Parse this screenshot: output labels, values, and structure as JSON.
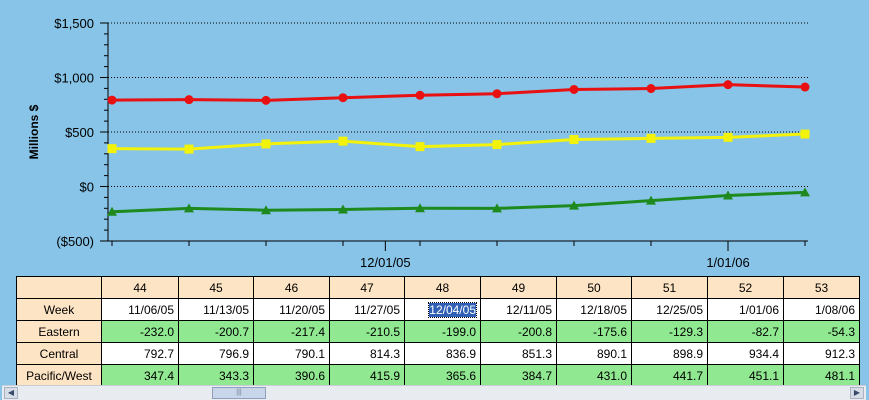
{
  "chart_data": {
    "type": "line",
    "ylabel": "Millions $",
    "ylim": [
      -500,
      1500
    ],
    "yticks": [
      "$1,500",
      "$1,000",
      "$500",
      "$0",
      "($500)"
    ],
    "ytick_values": [
      1500,
      1000,
      500,
      0,
      -500
    ],
    "x_date_labels": [
      {
        "label": "12/01/05",
        "at_week": 47.55
      },
      {
        "label": "1/01/06",
        "at_week": 52
      }
    ],
    "grid": true,
    "legend": "none",
    "weeks": [
      "44",
      "45",
      "46",
      "47",
      "48",
      "49",
      "50",
      "51",
      "52",
      "53"
    ],
    "dates": [
      "11/06/05",
      "11/13/05",
      "11/20/05",
      "11/27/05",
      "12/04/05",
      "12/11/05",
      "12/18/05",
      "12/25/05",
      "1/01/06",
      "1/08/06"
    ],
    "series": [
      {
        "name": "Eastern",
        "color": "#1E8A1E",
        "marker": "triangle",
        "values": [
          -232.0,
          -200.7,
          -217.4,
          -210.5,
          -199.0,
          -200.8,
          -175.6,
          -129.3,
          -82.7,
          -54.3
        ]
      },
      {
        "name": "Central",
        "color": "#E81010",
        "marker": "circle",
        "values": [
          792.7,
          796.9,
          790.1,
          814.3,
          836.9,
          851.3,
          890.1,
          898.9,
          934.4,
          912.3
        ]
      },
      {
        "name": "Pacific/West",
        "color": "#F2F20A",
        "marker": "square",
        "values": [
          347.4,
          343.3,
          390.6,
          415.9,
          365.6,
          384.7,
          431.0,
          441.7,
          451.1,
          481.1
        ]
      }
    ]
  },
  "table": {
    "week_row_label": "Week",
    "weeks": [
      "44",
      "45",
      "46",
      "47",
      "48",
      "49",
      "50",
      "51",
      "52",
      "53"
    ],
    "dates": [
      "11/06/05",
      "11/13/05",
      "11/20/05",
      "11/27/05",
      "12/04/05",
      "12/11/05",
      "12/18/05",
      "12/25/05",
      "1/01/06",
      "1/08/06"
    ],
    "selected_date": "12/04/05",
    "rows": [
      {
        "label": "Eastern",
        "values": [
          "-232.0",
          "-200.7",
          "-217.4",
          "-210.5",
          "-199.0",
          "-200.8",
          "-175.6",
          "-129.3",
          "-82.7",
          "-54.3"
        ]
      },
      {
        "label": "Central",
        "values": [
          "792.7",
          "796.9",
          "790.1",
          "814.3",
          "836.9",
          "851.3",
          "890.1",
          "898.9",
          "934.4",
          "912.3"
        ]
      },
      {
        "label": "Pacific/West",
        "values": [
          "347.4",
          "343.3",
          "390.6",
          "415.9",
          "365.6",
          "384.7",
          "431.0",
          "441.7",
          "451.1",
          "481.1"
        ]
      }
    ]
  },
  "scrollbar": {
    "left_icon": "arrow-left-icon",
    "right_icon": "arrow-right-icon",
    "thumb_grip": "|||"
  }
}
